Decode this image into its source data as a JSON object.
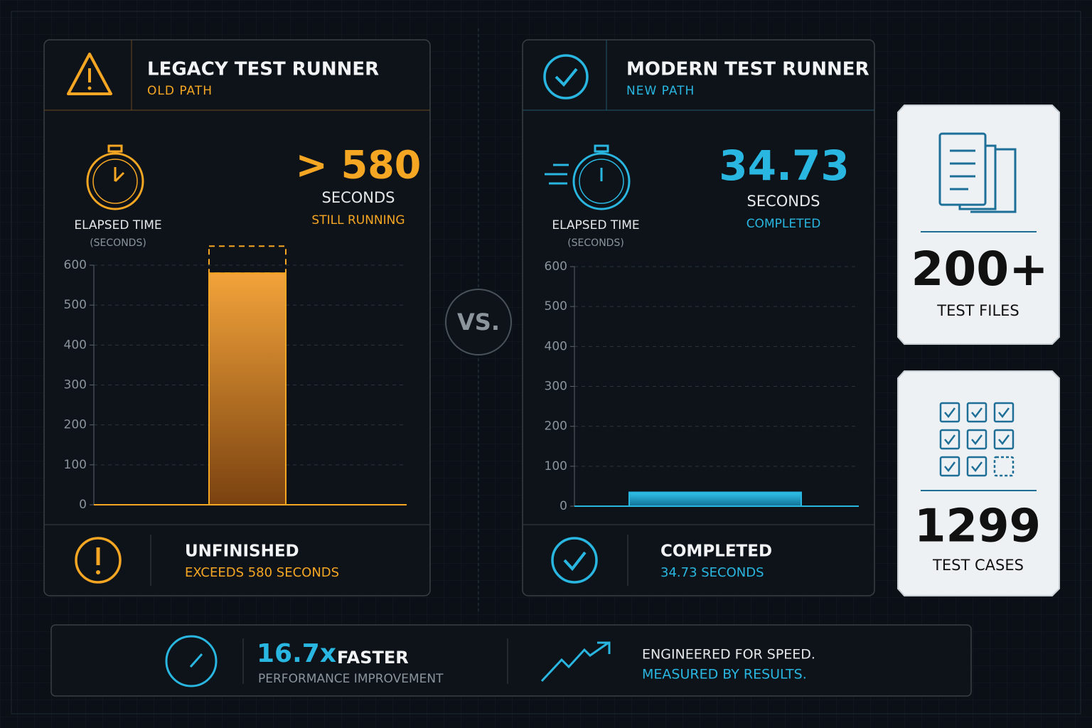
{
  "chart_data": [
    {
      "type": "bar",
      "title": "LEGACY TEST RUNNER",
      "subtitle": "OLD PATH",
      "y_label": "ELAPSED TIME",
      "y_unit": "(SECONDS)",
      "values": [
        580
      ],
      "value_labels": [
        "> 580"
      ],
      "value_unit": "SECONDS",
      "status": "STILL RUNNING",
      "color": "#f5a623",
      "ylim": [
        0,
        600
      ],
      "yticks": [
        0,
        100,
        200,
        300,
        400,
        500,
        600
      ],
      "grid": true,
      "footer": {
        "title": "UNFINISHED",
        "detail": "EXCEEDS 580 SECONDS"
      }
    },
    {
      "type": "bar",
      "title": "MODERN TEST RUNNER",
      "subtitle": "NEW PATH",
      "y_label": "ELAPSED TIME",
      "y_unit": "(SECONDS)",
      "values": [
        34.73
      ],
      "value_unit": "SECONDS",
      "status": "COMPLETED",
      "color": "#29b6e0",
      "ylim": [
        0,
        600
      ],
      "yticks": [
        0,
        100,
        200,
        300,
        400,
        500,
        600
      ],
      "grid": true,
      "footer": {
        "title": "COMPLETED",
        "detail": "34.73 SECONDS"
      }
    }
  ],
  "vs": "VS.",
  "stats": [
    {
      "value": "200+",
      "label": "TEST FILES"
    },
    {
      "value": 1299,
      "label": "TEST CASES"
    }
  ],
  "banner": {
    "speedup": "16.7x",
    "speedup_label": "FASTER",
    "detail": "PERFORMANCE IMPROVEMENT",
    "tagline": [
      "ENGINEERED FOR SPEED.",
      "MEASURED BY RESULTS."
    ]
  }
}
